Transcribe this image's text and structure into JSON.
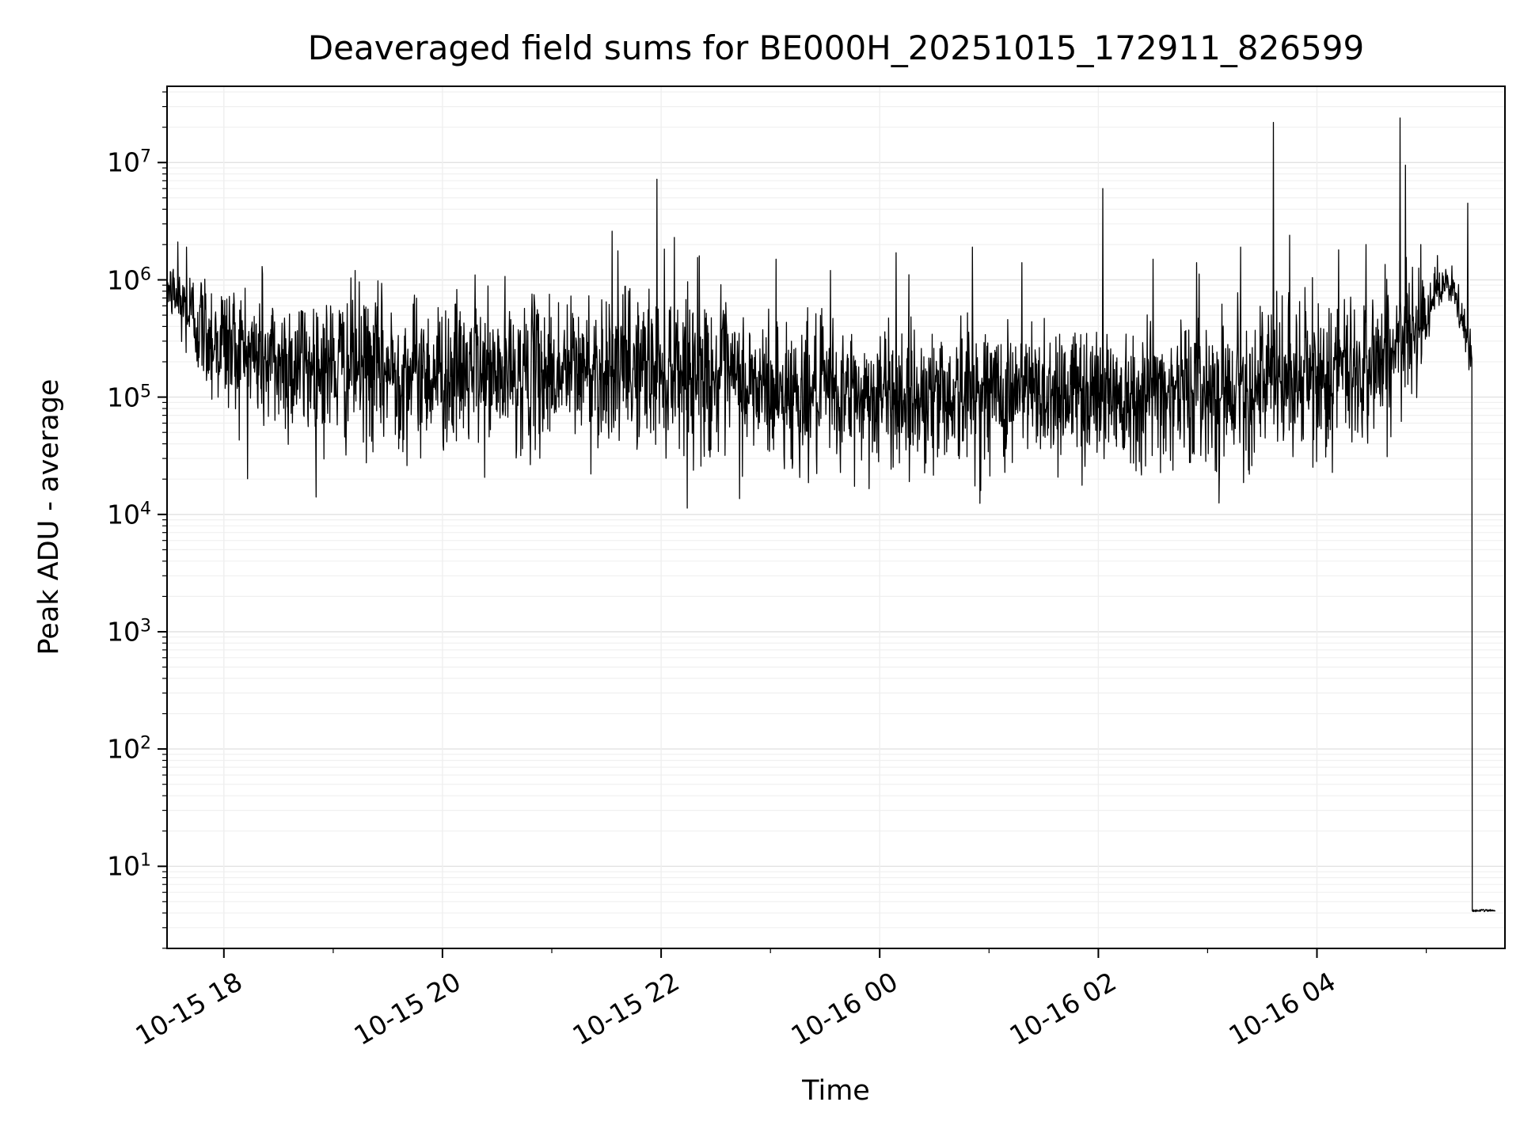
{
  "chart_data": {
    "type": "line",
    "title": "Deaveraged field sums for BE000H_20251015_172911_826599",
    "xlabel": "Time",
    "ylabel": "Peak ADU - average",
    "yscale": "log",
    "grid": "on",
    "line_color": "#000000",
    "x_range_hours": [
      17.48,
      29.72
    ],
    "ylim_log10": [
      0.3,
      7.65
    ],
    "x_ticks": [
      {
        "t": 18,
        "label": "10-15 18"
      },
      {
        "t": 20,
        "label": "10-15 20"
      },
      {
        "t": 22,
        "label": "10-15 22"
      },
      {
        "t": 24,
        "label": "10-16 00"
      },
      {
        "t": 26,
        "label": "10-16 02"
      },
      {
        "t": 28,
        "label": "10-16 04"
      }
    ],
    "x_minor_ticks": [
      19,
      21,
      23,
      25,
      27,
      29
    ],
    "y_tick_exponents": [
      1,
      2,
      3,
      4,
      5,
      6,
      7
    ],
    "series_name": "field sums",
    "n_points": 3200,
    "noise_seed": 12345,
    "envelope_log10": [
      [
        17.48,
        5.95,
        0.1
      ],
      [
        17.6,
        5.8,
        0.18
      ],
      [
        17.9,
        5.5,
        0.28
      ],
      [
        18.4,
        5.3,
        0.32
      ],
      [
        19.5,
        5.22,
        0.32
      ],
      [
        20.5,
        5.18,
        0.3
      ],
      [
        21.5,
        5.25,
        0.33
      ],
      [
        22.2,
        5.25,
        0.34
      ],
      [
        22.8,
        5.08,
        0.32
      ],
      [
        23.6,
        5.0,
        0.3
      ],
      [
        24.5,
        5.02,
        0.3
      ],
      [
        25.5,
        5.05,
        0.3
      ],
      [
        26.5,
        5.05,
        0.3
      ],
      [
        27.4,
        5.1,
        0.31
      ],
      [
        28.3,
        5.2,
        0.36
      ],
      [
        28.8,
        5.45,
        0.28
      ],
      [
        29.1,
        5.92,
        0.1
      ],
      [
        29.22,
        5.95,
        0.08
      ],
      [
        29.32,
        5.7,
        0.12
      ],
      [
        29.4,
        5.35,
        0.1
      ],
      [
        29.42,
        5.3,
        0.05
      ]
    ],
    "spikes": [
      [
        17.58,
        2100000
      ],
      [
        17.66,
        1900000
      ],
      [
        18.35,
        1300000
      ],
      [
        19.2,
        1200000
      ],
      [
        20.3,
        1100000
      ],
      [
        21.55,
        2600000
      ],
      [
        21.96,
        7200000
      ],
      [
        22.12,
        2300000
      ],
      [
        22.35,
        1600000
      ],
      [
        23.05,
        1500000
      ],
      [
        23.55,
        1200000
      ],
      [
        24.15,
        1700000
      ],
      [
        24.85,
        1900000
      ],
      [
        25.3,
        1400000
      ],
      [
        26.04,
        6000000
      ],
      [
        26.5,
        1500000
      ],
      [
        26.9,
        1400000
      ],
      [
        27.3,
        1900000
      ],
      [
        27.6,
        22000000
      ],
      [
        27.75,
        2400000
      ],
      [
        28.2,
        1800000
      ],
      [
        28.45,
        2000000
      ],
      [
        28.76,
        24000000
      ],
      [
        28.81,
        9500000
      ],
      [
        28.95,
        2000000
      ],
      [
        29.38,
        4500000
      ]
    ],
    "dropout": {
      "time": 29.42,
      "value": 4.2,
      "end": 29.63
    }
  }
}
